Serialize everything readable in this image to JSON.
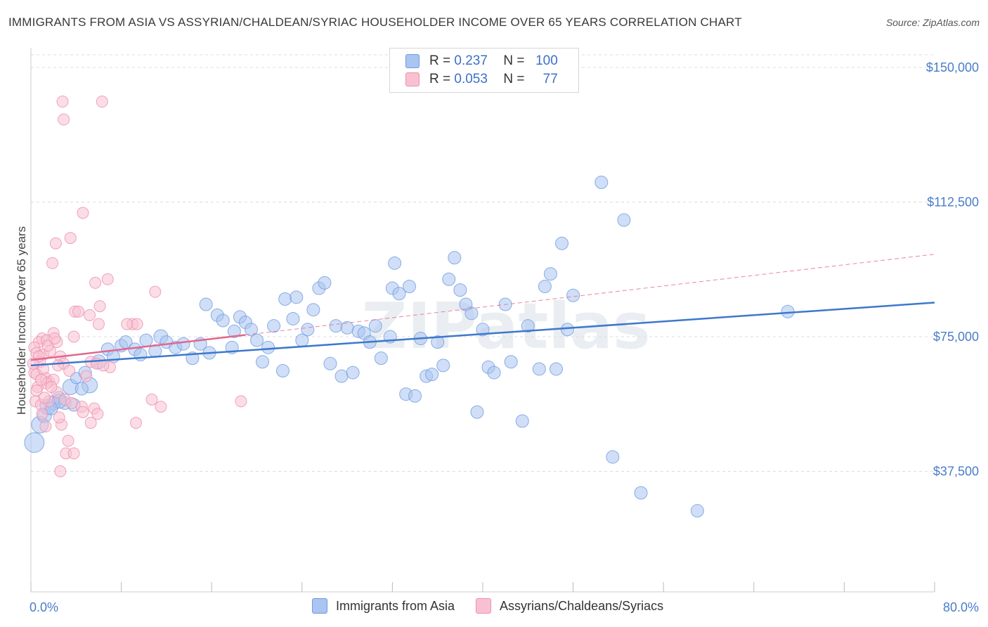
{
  "title": "IMMIGRANTS FROM ASIA VS ASSYRIAN/CHALDEAN/SYRIAC HOUSEHOLDER INCOME OVER 65 YEARS CORRELATION CHART",
  "source": "Source: ZipAtlas.com",
  "watermark": "ZIPatlas",
  "legend": {
    "r_label": "R =",
    "n_label": "N =",
    "series": [
      {
        "r": "0.237",
        "n": "100",
        "color": "#a9c5f0",
        "border": "#6f9be0"
      },
      {
        "r": "0.053",
        "n": "77",
        "color": "#f8c1d2",
        "border": "#ee8fae"
      }
    ]
  },
  "bottom_legend": [
    "Immigrants from Asia",
    "Assyrians/Chaldeans/Syriacs"
  ],
  "colors": {
    "blue": "#6f9be0",
    "blue_fill": "#a9c5f0",
    "pink": "#ee8fae",
    "pink_fill": "#f8c1d2",
    "blue_line": "#3d78cc",
    "pink_line": "#e2668e",
    "tick": "#4a7cc9"
  },
  "chart_data": {
    "type": "scatter",
    "title": "IMMIGRANTS FROM ASIA VS ASSYRIAN/CHALDEAN/SYRIAC HOUSEHOLDER INCOME OVER 65 YEARS CORRELATION CHART",
    "xlabel": "",
    "ylabel": "Householder Income Over 65 years",
    "xlim": [
      0,
      80
    ],
    "ylim": [
      0,
      150000
    ],
    "x_tick_labels": [
      "0.0%",
      "80.0%"
    ],
    "y_ticks": [
      37500,
      75000,
      112500,
      150000
    ],
    "y_tick_labels": [
      "$37,500",
      "$75,000",
      "$112,500",
      "$150,000"
    ],
    "grid": true,
    "series": [
      {
        "name": "Immigrants from Asia",
        "trend": {
          "x0": 0,
          "y0": 67000,
          "x1": 80,
          "y1": 84500
        },
        "points": [
          [
            0.3,
            45500,
            14
          ],
          [
            0.8,
            50500,
            12
          ],
          [
            1.2,
            53000,
            10
          ],
          [
            1.5,
            55500,
            11
          ],
          [
            2.0,
            56500,
            10
          ],
          [
            2.5,
            58000,
            9
          ],
          [
            3.0,
            56500,
            9
          ],
          [
            3.5,
            61000,
            11
          ],
          [
            4.0,
            63500,
            8
          ],
          [
            4.8,
            65000,
            9
          ],
          [
            5.2,
            61500,
            11
          ],
          [
            6.0,
            68000,
            10
          ],
          [
            6.8,
            71500,
            9
          ],
          [
            7.3,
            69500,
            9
          ],
          [
            8.0,
            72500,
            9
          ],
          [
            8.4,
            73500,
            9
          ],
          [
            9.2,
            71500,
            9
          ],
          [
            9.7,
            70000,
            9
          ],
          [
            10.2,
            74000,
            9
          ],
          [
            11.0,
            71000,
            9
          ],
          [
            11.5,
            75000,
            10
          ],
          [
            12.0,
            73500,
            9
          ],
          [
            12.8,
            72000,
            9
          ],
          [
            13.5,
            73000,
            9
          ],
          [
            14.3,
            69000,
            9
          ],
          [
            15.0,
            73000,
            9
          ],
          [
            15.5,
            84000,
            9
          ],
          [
            15.8,
            70500,
            9
          ],
          [
            16.5,
            81000,
            9
          ],
          [
            17.0,
            79500,
            9
          ],
          [
            17.8,
            72000,
            9
          ],
          [
            18.0,
            76500,
            9
          ],
          [
            18.5,
            80500,
            9
          ],
          [
            19.0,
            79000,
            9
          ],
          [
            19.5,
            77000,
            9
          ],
          [
            20.0,
            74000,
            9
          ],
          [
            20.5,
            68000,
            9
          ],
          [
            21.0,
            72000,
            9
          ],
          [
            21.5,
            78000,
            9
          ],
          [
            22.3,
            65500,
            9
          ],
          [
            22.5,
            85500,
            9
          ],
          [
            23.2,
            80000,
            9
          ],
          [
            23.5,
            86000,
            9
          ],
          [
            24.0,
            74000,
            9
          ],
          [
            24.5,
            77000,
            9
          ],
          [
            25.0,
            82500,
            9
          ],
          [
            25.5,
            88500,
            9
          ],
          [
            26.0,
            90000,
            9
          ],
          [
            26.5,
            67500,
            9
          ],
          [
            27.0,
            78000,
            9
          ],
          [
            27.5,
            64000,
            9
          ],
          [
            28.0,
            77500,
            9
          ],
          [
            28.5,
            65000,
            9
          ],
          [
            29.0,
            76500,
            9
          ],
          [
            29.5,
            76000,
            9
          ],
          [
            30.0,
            73500,
            9
          ],
          [
            30.5,
            78000,
            9
          ],
          [
            31.0,
            69000,
            9
          ],
          [
            31.8,
            75000,
            9
          ],
          [
            32.0,
            88500,
            9
          ],
          [
            32.2,
            95500,
            9
          ],
          [
            32.6,
            87000,
            9
          ],
          [
            33.2,
            59000,
            9
          ],
          [
            33.5,
            89000,
            9
          ],
          [
            34.0,
            58500,
            9
          ],
          [
            34.5,
            74500,
            9
          ],
          [
            35.0,
            64000,
            9
          ],
          [
            35.5,
            64500,
            9
          ],
          [
            36.0,
            73500,
            9
          ],
          [
            36.5,
            67000,
            9
          ],
          [
            37.0,
            91000,
            9
          ],
          [
            37.5,
            97000,
            9
          ],
          [
            38.0,
            88000,
            9
          ],
          [
            38.5,
            84000,
            9
          ],
          [
            39.0,
            81500,
            9
          ],
          [
            39.5,
            54000,
            9
          ],
          [
            40.0,
            77000,
            9
          ],
          [
            40.5,
            66500,
            9
          ],
          [
            41.0,
            65000,
            9
          ],
          [
            42.0,
            84000,
            9
          ],
          [
            42.5,
            68000,
            9
          ],
          [
            43.5,
            51500,
            9
          ],
          [
            44.0,
            78000,
            9
          ],
          [
            45.0,
            66000,
            9
          ],
          [
            45.5,
            89000,
            9
          ],
          [
            46.0,
            92500,
            9
          ],
          [
            46.5,
            66000,
            9
          ],
          [
            47.0,
            101000,
            9
          ],
          [
            47.5,
            77000,
            9
          ],
          [
            48.0,
            86500,
            9
          ],
          [
            50.5,
            118000,
            9
          ],
          [
            51.5,
            41500,
            9
          ],
          [
            52.5,
            107500,
            9
          ],
          [
            54.0,
            31500,
            9
          ],
          [
            59.0,
            26500,
            9
          ],
          [
            67.0,
            82000,
            9
          ],
          [
            2.5,
            57000,
            10
          ],
          [
            4.5,
            60500,
            9
          ],
          [
            1.8,
            55000,
            9
          ],
          [
            3.8,
            56000,
            9
          ]
        ]
      },
      {
        "name": "Assyrians/Chaldeans/Syriacs",
        "trend": {
          "x0": 0,
          "y0": 68500,
          "x1": 19,
          "y1": 75500
        },
        "points": [
          [
            2.8,
            140500,
            8
          ],
          [
            2.9,
            135500,
            8
          ],
          [
            6.3,
            140500,
            8
          ],
          [
            4.6,
            109500,
            8
          ],
          [
            2.2,
            101000,
            8
          ],
          [
            3.5,
            102500,
            8
          ],
          [
            1.9,
            95500,
            8
          ],
          [
            6.8,
            91000,
            8
          ],
          [
            5.7,
            90000,
            8
          ],
          [
            11.0,
            87500,
            8
          ],
          [
            6.1,
            83500,
            8
          ],
          [
            3.9,
            82000,
            8
          ],
          [
            4.2,
            82000,
            8
          ],
          [
            5.2,
            81000,
            8
          ],
          [
            9.0,
            78500,
            8
          ],
          [
            9.4,
            78500,
            8
          ],
          [
            6.0,
            78500,
            8
          ],
          [
            2.0,
            76000,
            8
          ],
          [
            3.8,
            75000,
            8
          ],
          [
            1.0,
            74500,
            8
          ],
          [
            0.7,
            73500,
            8
          ],
          [
            1.4,
            74000,
            8
          ],
          [
            2.3,
            73500,
            8
          ],
          [
            0.3,
            72000,
            8
          ],
          [
            0.5,
            70500,
            8
          ],
          [
            1.1,
            70000,
            8
          ],
          [
            1.7,
            71000,
            8
          ],
          [
            2.6,
            69500,
            8
          ],
          [
            0.8,
            68000,
            8
          ],
          [
            2.9,
            67500,
            8
          ],
          [
            5.3,
            68000,
            8
          ],
          [
            5.8,
            67500,
            8
          ],
          [
            7.0,
            66500,
            8
          ],
          [
            0.3,
            65000,
            8
          ],
          [
            1.3,
            63500,
            8
          ],
          [
            1.6,
            62500,
            8
          ],
          [
            2.0,
            63000,
            8
          ],
          [
            0.6,
            61000,
            8
          ],
          [
            1.4,
            62000,
            8
          ],
          [
            2.3,
            59500,
            8
          ],
          [
            0.4,
            57000,
            8
          ],
          [
            0.9,
            56000,
            8
          ],
          [
            1.6,
            57000,
            8
          ],
          [
            3.0,
            57500,
            8
          ],
          [
            3.6,
            56500,
            8
          ],
          [
            4.5,
            55500,
            8
          ],
          [
            5.6,
            55000,
            8
          ],
          [
            10.7,
            57500,
            8
          ],
          [
            11.5,
            55500,
            8
          ],
          [
            18.6,
            57000,
            8
          ],
          [
            4.6,
            54000,
            8
          ],
          [
            5.3,
            51000,
            8
          ],
          [
            9.3,
            51000,
            8
          ],
          [
            1.3,
            50000,
            8
          ],
          [
            2.7,
            50500,
            8
          ],
          [
            3.3,
            46000,
            8
          ],
          [
            3.1,
            42500,
            8
          ],
          [
            3.8,
            42500,
            8
          ],
          [
            2.6,
            37500,
            8
          ],
          [
            0.5,
            64500,
            8
          ],
          [
            1.1,
            66000,
            8
          ],
          [
            0.7,
            69500,
            8
          ],
          [
            1.5,
            72500,
            8
          ],
          [
            2.1,
            74500,
            8
          ],
          [
            0.9,
            63000,
            8
          ],
          [
            2.4,
            67000,
            8
          ],
          [
            3.4,
            65500,
            8
          ],
          [
            1.8,
            61000,
            8
          ],
          [
            0.5,
            60000,
            8
          ],
          [
            1.2,
            58000,
            8
          ],
          [
            6.4,
            67000,
            8
          ],
          [
            4.9,
            64000,
            8
          ],
          [
            2.5,
            52500,
            8
          ],
          [
            1.0,
            53500,
            8
          ],
          [
            5.9,
            53500,
            8
          ],
          [
            8.5,
            78500,
            8
          ],
          [
            0.2,
            67500,
            8
          ]
        ]
      }
    ]
  }
}
